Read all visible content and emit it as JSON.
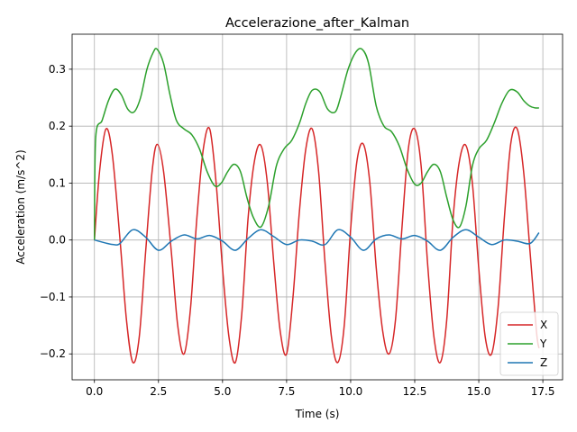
{
  "chart_data": {
    "type": "line",
    "title": "Accelerazione_after_Kalman",
    "xlabel": "Time (s)",
    "ylabel": "Acceleration (m/s^2)",
    "xlim": [
      -0.87,
      18.27
    ],
    "ylim": [
      -0.2455,
      0.3615
    ],
    "xticks": [
      0.0,
      2.5,
      5.0,
      7.5,
      10.0,
      12.5,
      15.0,
      17.5
    ],
    "xtick_labels": [
      "0.0",
      "2.5",
      "5.0",
      "7.5",
      "10.0",
      "12.5",
      "15.0",
      "17.5"
    ],
    "yticks": [
      -0.2,
      -0.1,
      0.0,
      0.1,
      0.2,
      0.3
    ],
    "ytick_labels": [
      "−0.2",
      "−0.1",
      "0.0",
      "0.1",
      "0.2",
      "0.3"
    ],
    "grid": true,
    "legend_position": "lower-right",
    "series": [
      {
        "name": "X",
        "color": "#d62728",
        "x": [
          0.0,
          0.2,
          0.45,
          0.7,
          1.0,
          1.25,
          1.5,
          1.75,
          2.0,
          2.25,
          2.45,
          2.7,
          3.0,
          3.25,
          3.5,
          3.75,
          4.0,
          4.25,
          4.5,
          4.75,
          5.0,
          5.25,
          5.5,
          5.75,
          6.0,
          6.25,
          6.5,
          6.75,
          7.0,
          7.25,
          7.5,
          7.75,
          8.0,
          8.25,
          8.5,
          8.75,
          9.0,
          9.25,
          9.5,
          9.75,
          10.0,
          10.25,
          10.5,
          10.75,
          11.0,
          11.25,
          11.5,
          11.75,
          12.0,
          12.25,
          12.5,
          12.75,
          13.0,
          13.25,
          13.5,
          13.75,
          14.0,
          14.25,
          14.5,
          14.75,
          15.0,
          15.25,
          15.5,
          15.75,
          16.0,
          16.25,
          16.5,
          16.75,
          17.0,
          17.25,
          17.35
        ],
        "y": [
          0.0,
          0.12,
          0.195,
          0.15,
          0.0,
          -0.14,
          -0.215,
          -0.17,
          -0.02,
          0.12,
          0.168,
          0.12,
          -0.02,
          -0.15,
          -0.2,
          -0.12,
          0.04,
          0.16,
          0.195,
          0.1,
          -0.05,
          -0.17,
          -0.215,
          -0.13,
          0.04,
          0.14,
          0.166,
          0.1,
          -0.04,
          -0.16,
          -0.2,
          -0.1,
          0.05,
          0.16,
          0.195,
          0.12,
          -0.04,
          -0.17,
          -0.215,
          -0.15,
          0.02,
          0.14,
          0.168,
          0.1,
          -0.05,
          -0.16,
          -0.2,
          -0.14,
          0.02,
          0.16,
          0.195,
          0.13,
          -0.04,
          -0.17,
          -0.215,
          -0.14,
          0.04,
          0.14,
          0.166,
          0.1,
          -0.05,
          -0.17,
          -0.2,
          -0.12,
          0.04,
          0.17,
          0.195,
          0.12,
          -0.02,
          -0.16,
          -0.19
        ]
      },
      {
        "name": "Y",
        "color": "#2ca02c",
        "x": [
          0.0,
          0.05,
          0.3,
          0.55,
          0.8,
          1.05,
          1.3,
          1.55,
          1.8,
          2.05,
          2.3,
          2.45,
          2.7,
          2.95,
          3.2,
          3.5,
          3.8,
          4.1,
          4.4,
          4.7,
          4.95,
          5.2,
          5.45,
          5.7,
          5.95,
          6.2,
          6.5,
          6.8,
          7.1,
          7.4,
          7.7,
          8.0,
          8.25,
          8.5,
          8.8,
          9.1,
          9.4,
          9.6,
          9.9,
          10.2,
          10.45,
          10.7,
          11.0,
          11.3,
          11.6,
          11.9,
          12.2,
          12.5,
          12.75,
          13.0,
          13.25,
          13.5,
          13.75,
          14.0,
          14.25,
          14.5,
          14.75,
          15.0,
          15.3,
          15.6,
          15.9,
          16.2,
          16.5,
          16.75,
          17.0,
          17.2,
          17.35
        ],
        "y": [
          0.0,
          0.18,
          0.21,
          0.245,
          0.265,
          0.255,
          0.23,
          0.225,
          0.25,
          0.3,
          0.33,
          0.335,
          0.31,
          0.255,
          0.21,
          0.195,
          0.185,
          0.16,
          0.12,
          0.095,
          0.1,
          0.12,
          0.133,
          0.12,
          0.075,
          0.04,
          0.023,
          0.06,
          0.13,
          0.16,
          0.175,
          0.205,
          0.24,
          0.263,
          0.26,
          0.23,
          0.225,
          0.25,
          0.3,
          0.33,
          0.335,
          0.31,
          0.235,
          0.2,
          0.19,
          0.165,
          0.125,
          0.098,
          0.1,
          0.12,
          0.133,
          0.12,
          0.075,
          0.035,
          0.023,
          0.06,
          0.13,
          0.16,
          0.175,
          0.205,
          0.24,
          0.263,
          0.26,
          0.245,
          0.235,
          0.232,
          0.232
        ]
      },
      {
        "name": "Z",
        "color": "#1f77b4",
        "x": [
          0.0,
          0.5,
          0.75,
          1.0,
          1.5,
          2.0,
          2.5,
          3.0,
          3.5,
          4.0,
          4.5,
          5.0,
          5.5,
          6.0,
          6.5,
          7.0,
          7.5,
          8.0,
          8.5,
          9.0,
          9.5,
          10.0,
          10.5,
          11.0,
          11.5,
          12.0,
          12.5,
          13.0,
          13.5,
          14.0,
          14.5,
          15.0,
          15.5,
          16.0,
          16.5,
          17.0,
          17.35
        ],
        "y": [
          0.0,
          -0.006,
          -0.008,
          -0.006,
          0.018,
          0.005,
          -0.018,
          -0.002,
          0.009,
          0.002,
          0.008,
          -0.002,
          -0.018,
          0.003,
          0.018,
          0.006,
          -0.008,
          0.0,
          -0.002,
          -0.008,
          0.018,
          0.005,
          -0.018,
          0.002,
          0.009,
          0.002,
          0.008,
          -0.002,
          -0.018,
          0.005,
          0.018,
          0.005,
          -0.008,
          0.0,
          -0.002,
          -0.006,
          0.013
        ]
      }
    ]
  }
}
